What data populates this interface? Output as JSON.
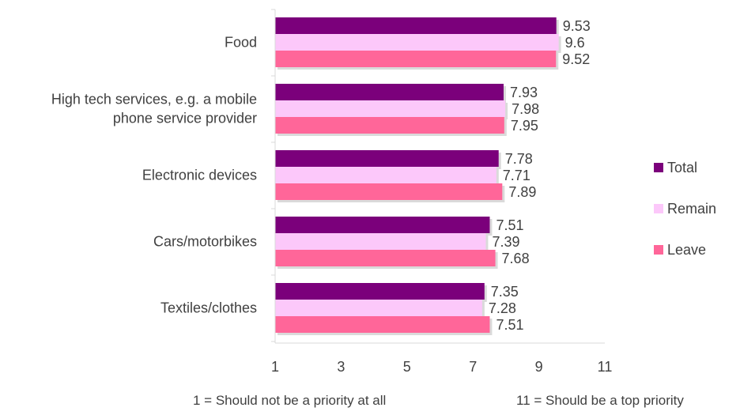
{
  "chart_data": {
    "type": "bar",
    "orientation": "horizontal",
    "categories": [
      [
        "Food"
      ],
      [
        "High tech services, e.g. a mobile",
        "phone service provider"
      ],
      [
        "Electronic devices"
      ],
      [
        "Cars/motorbikes"
      ],
      [
        "Textiles/clothes"
      ]
    ],
    "series": [
      {
        "name": "Total",
        "color": "#7B007B",
        "values": [
          9.53,
          7.93,
          7.78,
          7.51,
          7.35
        ]
      },
      {
        "name": "Remain",
        "color": "#FCC8FA",
        "values": [
          9.6,
          7.98,
          7.71,
          7.39,
          7.28
        ]
      },
      {
        "name": "Leave",
        "color": "#FF6699",
        "values": [
          9.52,
          7.95,
          7.89,
          7.68,
          7.51
        ]
      }
    ],
    "data_labels": [
      [
        "9.53",
        "9.6",
        "9.52"
      ],
      [
        "7.93",
        "7.98",
        "7.95"
      ],
      [
        "7.78",
        "7.71",
        "7.89"
      ],
      [
        "7.51",
        "7.39",
        "7.68"
      ],
      [
        "7.35",
        "7.28",
        "7.51"
      ]
    ],
    "xlim": [
      1,
      11
    ],
    "xticks": [
      1,
      3,
      5,
      7,
      9,
      11
    ],
    "grid": false,
    "legend_position": "right",
    "title": "",
    "xlabel": "",
    "ylabel": ""
  },
  "notes": {
    "left": "1 = Should not be a priority at all",
    "right": "11 = Should be a top priority"
  }
}
